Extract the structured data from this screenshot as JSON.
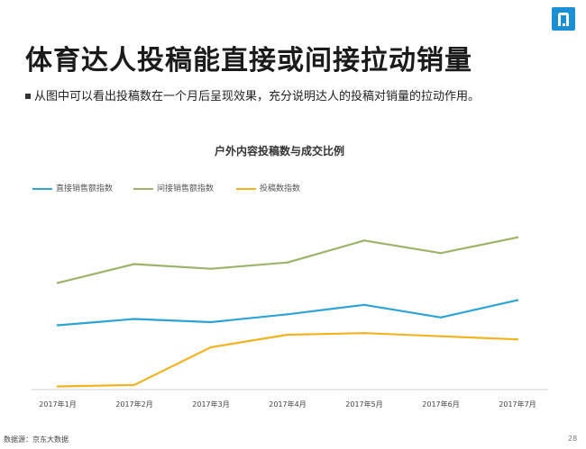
{
  "page": {
    "title": "体育达人投稿能直接或间接拉动销量",
    "subtitle": "从图中可以看出投稿数在一个月后呈现效果，充分说明达人的投稿对销量的拉动作用。",
    "footer": "数据源：京东大数据",
    "page_number": "28"
  },
  "colors": {
    "brand": "#1a8fd4",
    "direct": "#2ea3d6",
    "indirect": "#9ab56a",
    "posts": "#f2b320"
  },
  "chart_data": {
    "type": "line",
    "title": "户外内容投稿数与成交比例",
    "categories": [
      "2017年1月",
      "2017年2月",
      "2017年3月",
      "2017年4月",
      "2017年5月",
      "2017年6月",
      "2017年7月"
    ],
    "series": [
      {
        "name": "直接销售额指数",
        "color": "#2ea3d6",
        "values": [
          41,
          45,
          43,
          48,
          54,
          46,
          57
        ]
      },
      {
        "name": "间接销售额指数",
        "color": "#9ab56a",
        "values": [
          68,
          80,
          77,
          81,
          95,
          87,
          97
        ]
      },
      {
        "name": "投稿数指数",
        "color": "#f2b320",
        "values": [
          2,
          3,
          27,
          35,
          36,
          34,
          32
        ]
      }
    ],
    "ylim": [
      0,
      125
    ],
    "grid": false,
    "legend_position": "top-left"
  }
}
